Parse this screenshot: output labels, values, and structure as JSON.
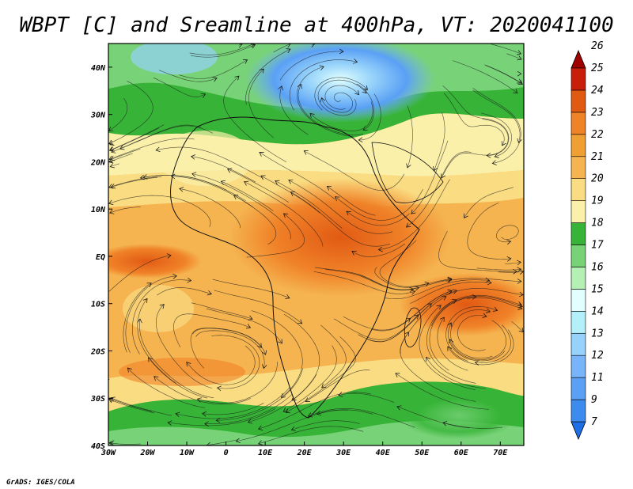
{
  "title": "WBPT [C] and Sreamline at 400hPa, VT: 2020041100",
  "credit": "GrADS: IGES/COLA",
  "map": {
    "lon_range": [
      -30,
      76
    ],
    "lat_range": [
      -40,
      45
    ],
    "x_ticks": [
      {
        "value": -30,
        "label": "30W"
      },
      {
        "value": -20,
        "label": "20W"
      },
      {
        "value": -10,
        "label": "10W"
      },
      {
        "value": 0,
        "label": "0"
      },
      {
        "value": 10,
        "label": "10E"
      },
      {
        "value": 20,
        "label": "20E"
      },
      {
        "value": 30,
        "label": "30E"
      },
      {
        "value": 40,
        "label": "40E"
      },
      {
        "value": 50,
        "label": "50E"
      },
      {
        "value": 60,
        "label": "60E"
      },
      {
        "value": 70,
        "label": "70E"
      }
    ],
    "y_ticks": [
      {
        "value": 40,
        "label": "40N"
      },
      {
        "value": 30,
        "label": "30N"
      },
      {
        "value": 20,
        "label": "20N"
      },
      {
        "value": 10,
        "label": "10N"
      },
      {
        "value": 0,
        "label": "EQ"
      },
      {
        "value": -10,
        "label": "10S"
      },
      {
        "value": -20,
        "label": "20S"
      },
      {
        "value": -30,
        "label": "30S"
      },
      {
        "value": -40,
        "label": "40S"
      }
    ]
  },
  "colorbar": {
    "levels": [
      "7",
      "9",
      "11",
      "12",
      "13",
      "14",
      "15",
      "16",
      "17",
      "18",
      "19",
      "20",
      "21",
      "22",
      "23",
      "24",
      "25",
      "26"
    ],
    "colors": [
      "#1e6ee6",
      "#3c8cf0",
      "#5aa0f5",
      "#78b4fa",
      "#96d2fa",
      "#b4f0fa",
      "#e1ffff",
      "#b4f0b4",
      "#78d278",
      "#37b437",
      "#faf0aa",
      "#fadc82",
      "#f5b450",
      "#f0a032",
      "#f08228",
      "#e15a14",
      "#c81e0a",
      "#a00000"
    ]
  }
}
